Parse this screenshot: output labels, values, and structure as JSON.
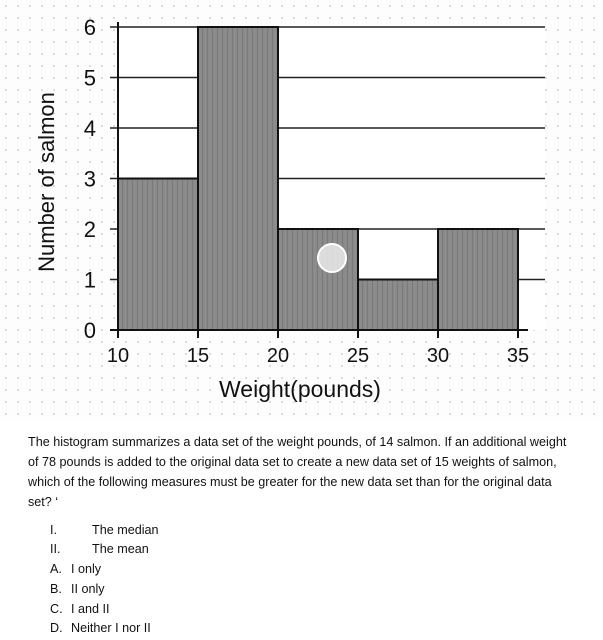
{
  "chart_data": {
    "type": "bar",
    "title": "",
    "xlabel": "Weight(pounds)",
    "ylabel": "Number of salmon",
    "x_ticks": [
      10,
      15,
      20,
      25,
      30,
      35
    ],
    "y_ticks": [
      0,
      1,
      2,
      3,
      4,
      5,
      6
    ],
    "xlim": [
      10,
      35
    ],
    "ylim": [
      0,
      6
    ],
    "grid": "horizontal",
    "bins": [
      {
        "start": 10,
        "end": 15,
        "value": 3
      },
      {
        "start": 15,
        "end": 20,
        "value": 6
      },
      {
        "start": 20,
        "end": 25,
        "value": 2
      },
      {
        "start": 25,
        "end": 30,
        "value": 1
      },
      {
        "start": 30,
        "end": 35,
        "value": 2
      }
    ],
    "bar_color": "#8a8a8a"
  },
  "question": {
    "text": "The histogram summarizes a data set of the weight pounds, of 14 salmon. If an additional weight of 78 pounds is added to the original data set to create a new data set of 15 weights of salmon, which of the following measures must be greater for the new data set than for the original data set? ‘",
    "statements": [
      {
        "num": "I.",
        "text": "The median"
      },
      {
        "num": "II.",
        "text": "The mean"
      }
    ],
    "choices": [
      {
        "letter": "A.",
        "text": "I only"
      },
      {
        "letter": "B.",
        "text": "II only"
      },
      {
        "letter": "C.",
        "text": "I and II"
      },
      {
        "letter": "D.",
        "text": "Neither I nor II"
      }
    ]
  }
}
